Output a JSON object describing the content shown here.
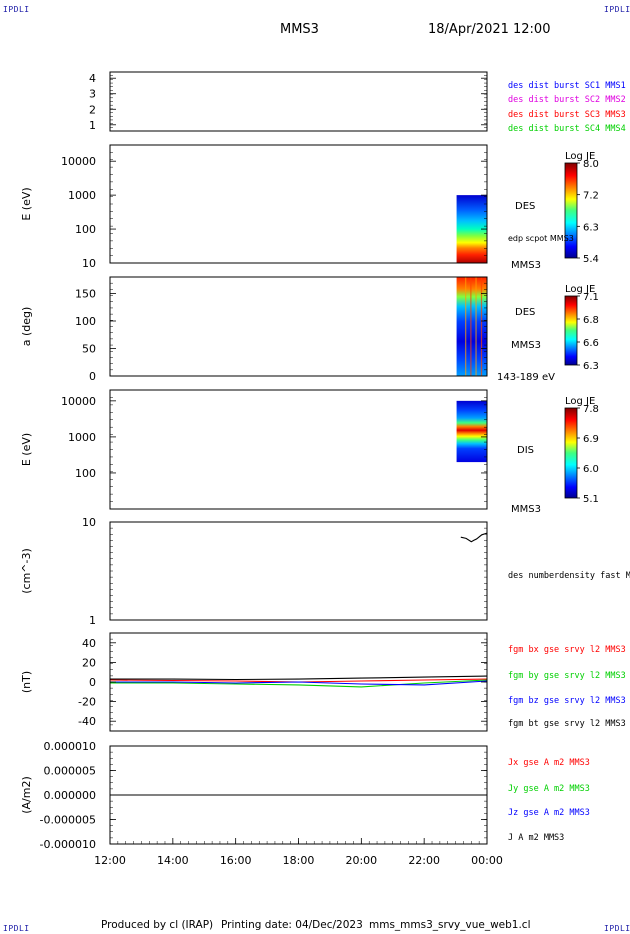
{
  "header": {
    "corner_label": "IPDLI",
    "spacecraft": "MMS3",
    "datetime": "18/Apr/2021 12:00"
  },
  "footer": {
    "produced": "Produced by cl (IRAP)",
    "printing": "Printing date: 04/Dec/2023",
    "filename": "mms_mms3_srvy_vue_web1.cl"
  },
  "colors": {
    "blue": "#0000ff",
    "magenta": "#e000e0",
    "red": "#ff0000",
    "green": "#00d000",
    "black": "#000000"
  },
  "chart_data": [
    {
      "type": "line",
      "ylabel": "",
      "yticks": [
        "1",
        "2",
        "3",
        "4"
      ],
      "ylim": [
        0.6,
        4.4
      ],
      "legend": [
        {
          "text": "des dist burst SC1 MMS1",
          "color": "#0000ff"
        },
        {
          "text": "des dist burst SC2 MMS2",
          "color": "#e000e0"
        },
        {
          "text": "des dist burst SC3 MMS3",
          "color": "#ff0000"
        },
        {
          "text": "des dist burst SC4 MMS4",
          "color": "#00d000"
        }
      ],
      "series": []
    },
    {
      "type": "heatmap",
      "ylabel": "E (eV)",
      "yscale": "log",
      "ylim": [
        10,
        30000
      ],
      "yticks": [
        "10",
        "100",
        "1000",
        "10000"
      ],
      "data_x_range": [
        "23:00",
        "00:00"
      ],
      "data_y_range": [
        10,
        1000
      ],
      "side_labels": [
        "DES",
        "edp scpot MMS3",
        "MMS3"
      ],
      "colorbar": {
        "title": "Log JE",
        "ticks": [
          "5.4",
          "6.3",
          "7.2",
          "8.0"
        ]
      }
    },
    {
      "type": "heatmap",
      "ylabel": "a (deg)",
      "ylim": [
        0,
        180
      ],
      "yticks": [
        "0",
        "50",
        "100",
        "150"
      ],
      "data_x_range": [
        "23:00",
        "00:00"
      ],
      "data_y_range": [
        0,
        180
      ],
      "side_labels": [
        "DES",
        "MMS3",
        "143-189 eV"
      ],
      "colorbar": {
        "title": "Log JE",
        "ticks": [
          "6.3",
          "6.6",
          "6.8",
          "7.1"
        ]
      }
    },
    {
      "type": "heatmap",
      "ylabel": "E (eV)",
      "yscale": "log",
      "ylim": [
        10,
        20000
      ],
      "yticks": [
        "100",
        "1000",
        "10000"
      ],
      "data_x_range": [
        "23:00",
        "00:00"
      ],
      "data_y_range": [
        200,
        10000
      ],
      "side_labels": [
        "DIS",
        "MMS3"
      ],
      "colorbar": {
        "title": "Log JE",
        "ticks": [
          "5.1",
          "6.0",
          "6.9",
          "7.8"
        ]
      }
    },
    {
      "type": "line",
      "ylabel": "(cm^-3)",
      "yscale": "log",
      "ylim": [
        1,
        10
      ],
      "yticks": [
        "1",
        "10"
      ],
      "legend": [
        {
          "text": "des numberdensity fast M",
          "color": "#000000"
        }
      ],
      "series": [
        {
          "name": "des numberdensity fast M",
          "color": "#000000",
          "x": [
            "23:10",
            "23:20",
            "23:30",
            "23:35",
            "23:40",
            "23:50",
            "00:00"
          ],
          "values": [
            7.0,
            6.8,
            6.3,
            6.5,
            6.7,
            7.4,
            7.7
          ]
        }
      ]
    },
    {
      "type": "line",
      "ylabel": "(nT)",
      "ylim": [
        -50,
        50
      ],
      "yticks": [
        "-40",
        "-20",
        "0",
        "20",
        "40"
      ],
      "legend": [
        {
          "text": "fgm bx gse srvy l2 MMS3",
          "color": "#ff0000"
        },
        {
          "text": "fgm by gse srvy l2 MMS3",
          "color": "#00d000"
        },
        {
          "text": "fgm bz gse srvy l2 MMS3",
          "color": "#0000ff"
        },
        {
          "text": "fgm bt gse srvy l2 MMS3",
          "color": "#000000"
        }
      ],
      "series": [
        {
          "name": "fgm bx gse srvy l2 MMS3",
          "color": "#ff0000",
          "x": [
            "12:00",
            "14:00",
            "16:00",
            "18:00",
            "20:00",
            "22:00",
            "00:00"
          ],
          "values": [
            2,
            1.5,
            1,
            0,
            1,
            2,
            3
          ]
        },
        {
          "name": "fgm by gse srvy l2 MMS3",
          "color": "#00d000",
          "x": [
            "12:00",
            "14:00",
            "16:00",
            "18:00",
            "20:00",
            "22:00",
            "00:00"
          ],
          "values": [
            -1,
            -1,
            -2,
            -3,
            -5,
            -1,
            2
          ]
        },
        {
          "name": "fgm bz gse srvy l2 MMS3",
          "color": "#0000ff",
          "x": [
            "12:00",
            "14:00",
            "16:00",
            "18:00",
            "20:00",
            "22:00",
            "00:00"
          ],
          "values": [
            0,
            0,
            -1,
            0,
            -2,
            -3,
            1
          ]
        },
        {
          "name": "fgm bt gse srvy l2 MMS3",
          "color": "#000000",
          "x": [
            "12:00",
            "14:00",
            "16:00",
            "18:00",
            "20:00",
            "22:00",
            "00:00"
          ],
          "values": [
            3,
            3,
            2.5,
            3,
            4,
            5,
            6
          ]
        }
      ]
    },
    {
      "type": "line",
      "ylabel": "(A/m2)",
      "ylim": [
        -1e-05,
        1e-05
      ],
      "yticks": [
        "-0.000010",
        "-0.000005",
        "0.000000",
        "0.000005",
        "0.000010"
      ],
      "legend": [
        {
          "text": "Jx gse A m2 MMS3",
          "color": "#ff0000"
        },
        {
          "text": "Jy gse A m2 MMS3",
          "color": "#00d000"
        },
        {
          "text": "Jz gse A m2 MMS3",
          "color": "#0000ff"
        },
        {
          "text": "J A m2 MMS3",
          "color": "#000000"
        }
      ],
      "series": [
        {
          "name": "J A m2 MMS3",
          "color": "#000000",
          "x": [
            "12:00",
            "00:00"
          ],
          "values": [
            0.0,
            0.0
          ]
        }
      ]
    }
  ],
  "xaxis": {
    "ticks": [
      "12:00",
      "14:00",
      "16:00",
      "18:00",
      "20:00",
      "22:00",
      "00:00"
    ]
  }
}
